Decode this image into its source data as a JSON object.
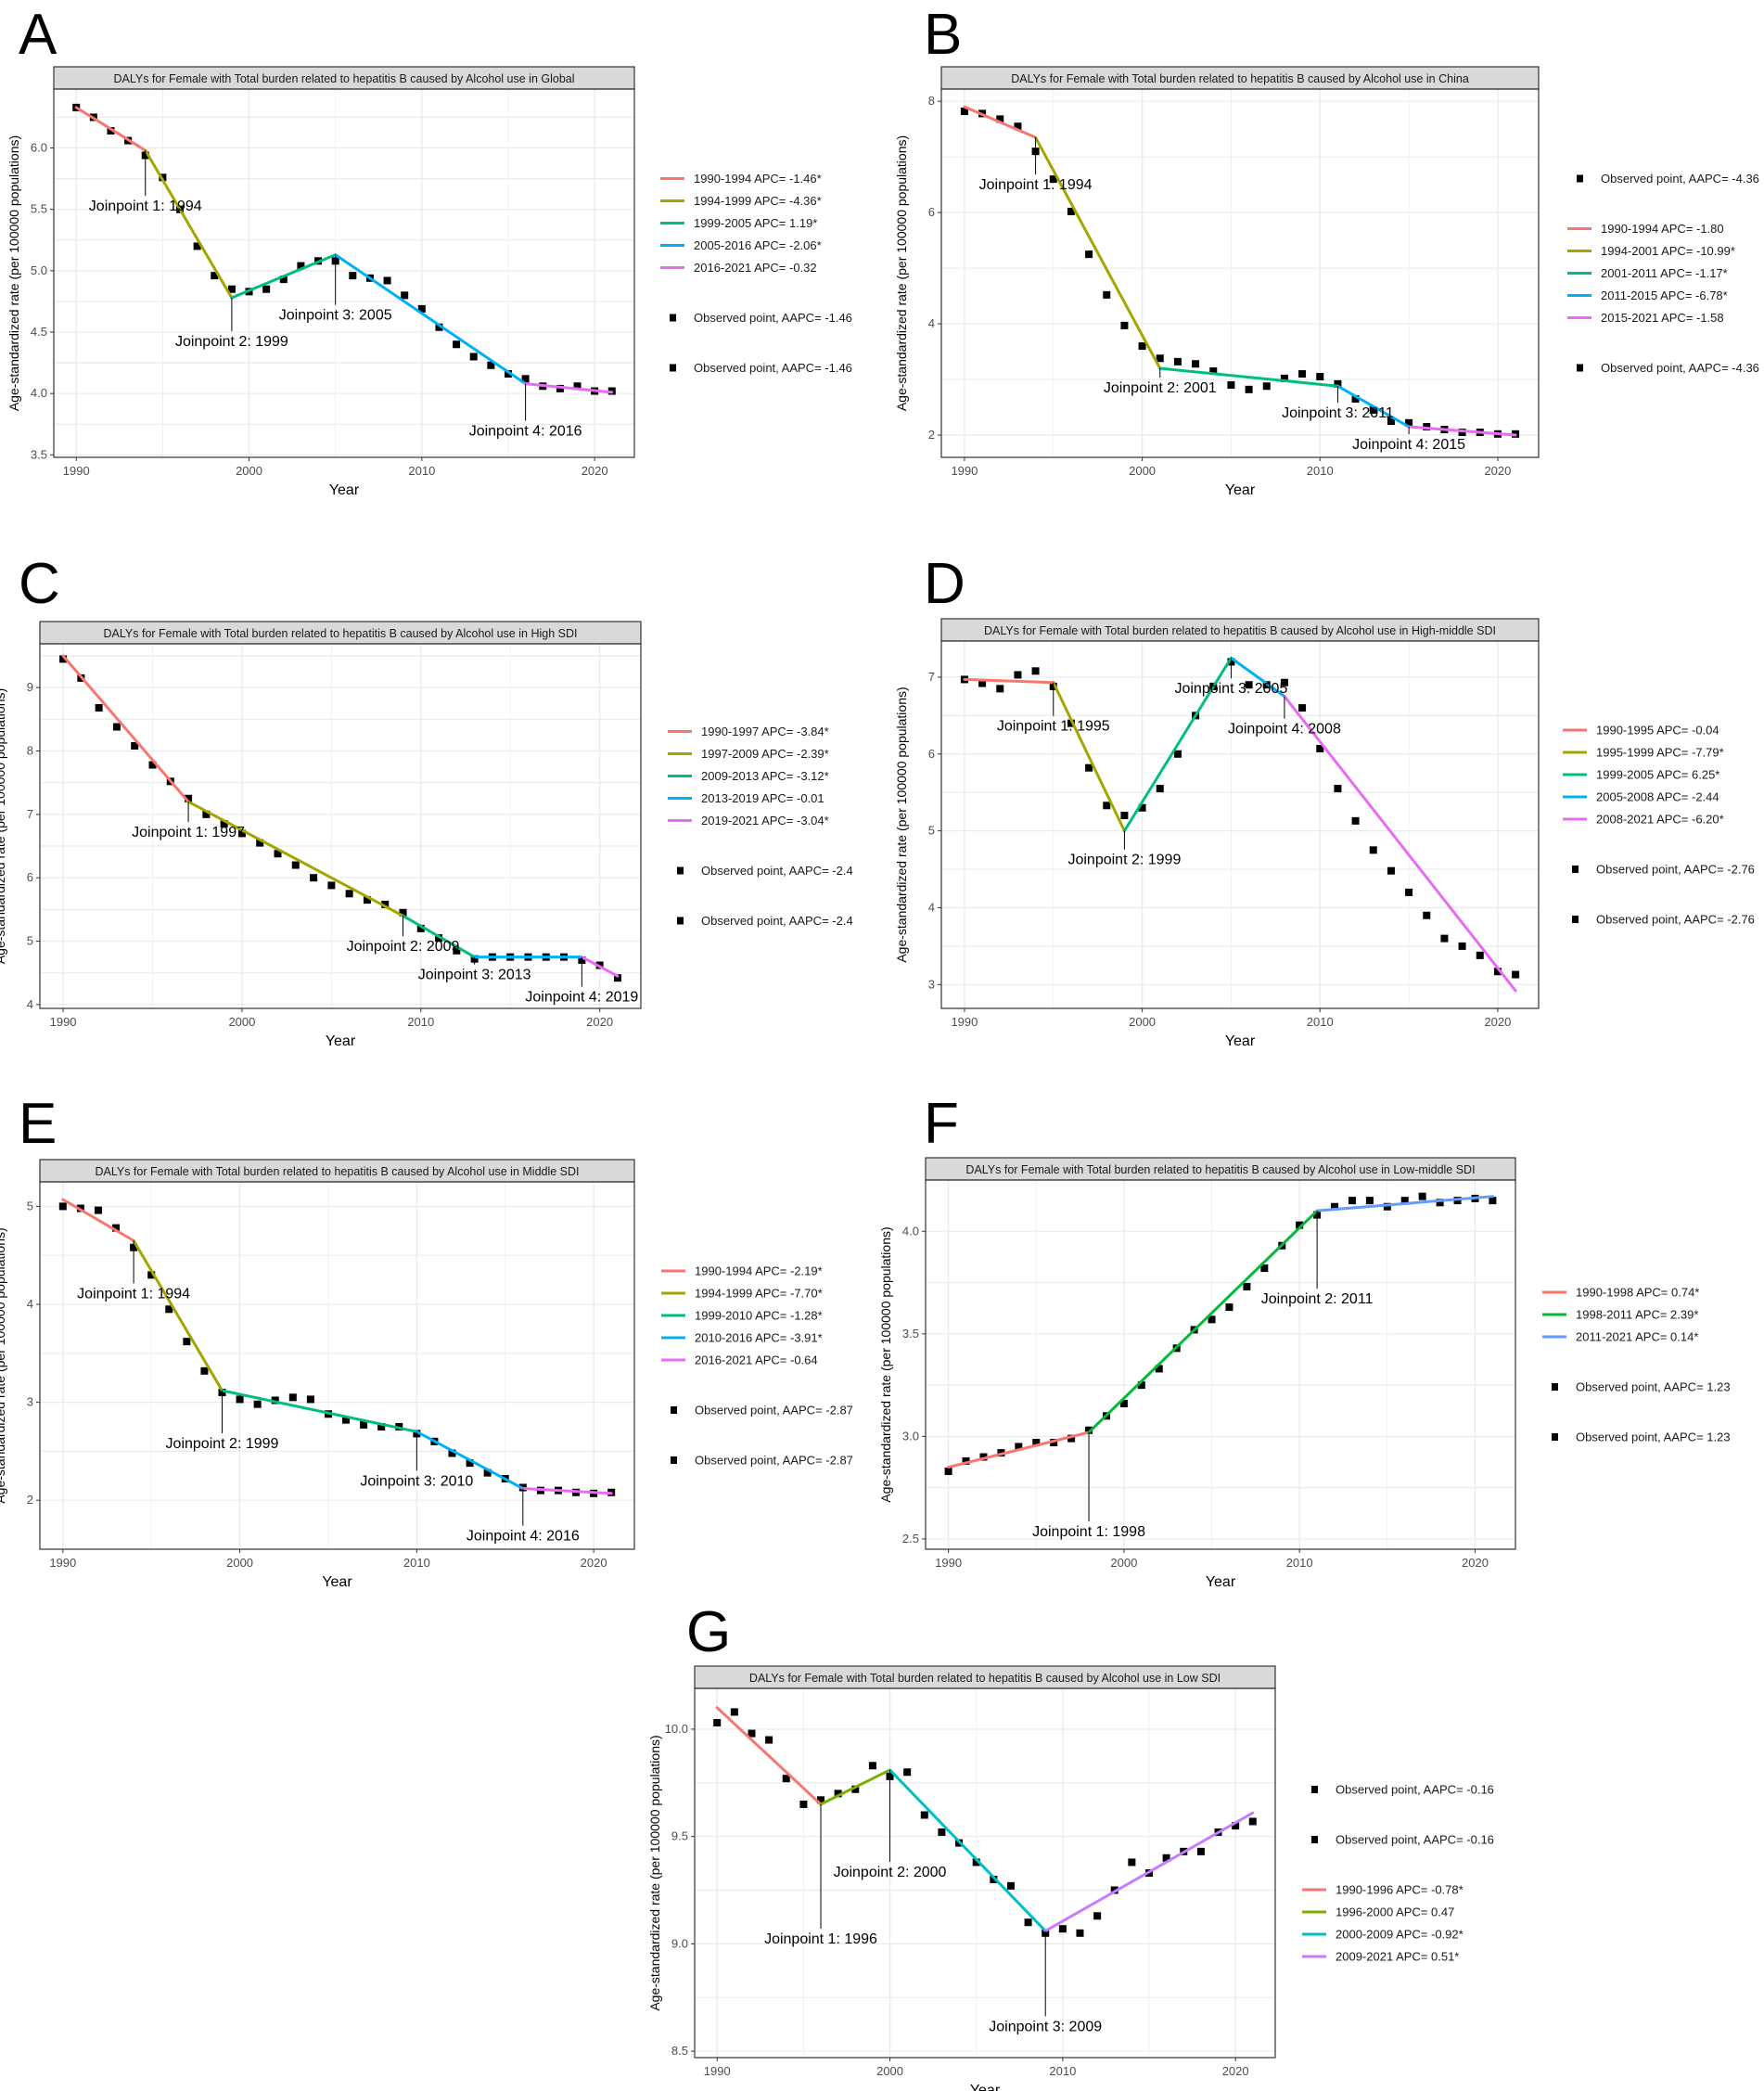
{
  "chart_data": [
    {
      "panel": "A",
      "type": "line",
      "title": "DALYs for Female with Total burden related to hepatitis B caused by Alcohol use in Global",
      "xlabel": "Year",
      "ylabel": "Age-standardized rate (per 100000 populations)",
      "xlim": [
        1988.7,
        2022.3
      ],
      "ylim": [
        3.48,
        6.48
      ],
      "xticks": [
        1990,
        2000,
        2010,
        2020
      ],
      "yticks": [
        "3.5",
        "4.0",
        "4.5",
        "5.0",
        "5.5",
        "6.0"
      ],
      "grid": true,
      "legend": "right",
      "observed": [
        6.33,
        6.25,
        6.14,
        6.06,
        5.94,
        5.76,
        5.5,
        5.2,
        4.96,
        4.85,
        4.83,
        4.85,
        4.93,
        5.04,
        5.08,
        5.08,
        4.96,
        4.94,
        4.92,
        4.8,
        4.69,
        4.54,
        4.4,
        4.3,
        4.23,
        4.16,
        4.12,
        4.06,
        4.04,
        4.06,
        4.02,
        4.02
      ],
      "fitted_knots": [
        [
          1990,
          6.33
        ],
        [
          1994,
          5.98
        ],
        [
          1999,
          4.78
        ],
        [
          2005,
          5.13
        ],
        [
          2016,
          4.08
        ],
        [
          2021,
          4.01
        ]
      ],
      "segment_colors": [
        "#F8766D",
        "#A3A500",
        "#00BF7D",
        "#00B0F6",
        "#E76BF3"
      ],
      "joinpoints": [
        {
          "year": 1994,
          "label": "Joinpoint 1: 1994"
        },
        {
          "year": 1999,
          "label": "Joinpoint 2: 1999"
        },
        {
          "year": 2005,
          "label": "Joinpoint 3: 2005"
        },
        {
          "year": 2016,
          "label": "Joinpoint 4: 2016"
        }
      ],
      "legend_items": [
        {
          "kind": "line",
          "seg": 0,
          "label": "1990-1994 APC= -1.46*"
        },
        {
          "kind": "line",
          "seg": 1,
          "label": "1994-1999 APC= -4.36*"
        },
        {
          "kind": "line",
          "seg": 2,
          "label": "1999-2005 APC= 1.19*"
        },
        {
          "kind": "line",
          "seg": 3,
          "label": "2005-2016 APC= -2.06*"
        },
        {
          "kind": "line",
          "seg": 4,
          "label": "2016-2021 APC= -0.32"
        },
        {
          "kind": "point",
          "label": "Observed point, AAPC= -1.46"
        },
        {
          "kind": "point",
          "label": "Observed point, AAPC= -1.46"
        }
      ]
    },
    {
      "panel": "B",
      "type": "line",
      "title": "DALYs for Female with Total burden related to hepatitis B caused by Alcohol use in China",
      "xlabel": "Year",
      "ylabel": "Age-standardized rate (per 100000 populations)",
      "xlim": [
        1988.7,
        2022.3
      ],
      "ylim": [
        1.6,
        8.22
      ],
      "xticks": [
        1990,
        2000,
        2010,
        2020
      ],
      "yticks": [
        "2",
        "4",
        "6",
        "8"
      ],
      "grid": true,
      "legend": "right",
      "observed": [
        7.82,
        7.78,
        7.68,
        7.55,
        7.1,
        6.6,
        6.02,
        5.25,
        4.52,
        3.97,
        3.6,
        3.38,
        3.32,
        3.28,
        3.15,
        2.9,
        2.82,
        2.88,
        3.02,
        3.1,
        3.05,
        2.92,
        2.65,
        2.45,
        2.25,
        2.22,
        2.15,
        2.1,
        2.05,
        2.05,
        2.02,
        2.02
      ],
      "fitted_knots": [
        [
          1990,
          7.9
        ],
        [
          1994,
          7.35
        ],
        [
          2001,
          3.2
        ],
        [
          2011,
          2.88
        ],
        [
          2015,
          2.15
        ],
        [
          2021,
          2.0
        ]
      ],
      "segment_colors": [
        "#F8766D",
        "#A3A500",
        "#00BF7D",
        "#00B0F6",
        "#E76BF3"
      ],
      "joinpoints": [
        {
          "year": 1994,
          "label": "Joinpoint 1: 1994"
        },
        {
          "year": 2001,
          "label": "Joinpoint 2: 2001"
        },
        {
          "year": 2011,
          "label": "Joinpoint 3: 2011"
        },
        {
          "year": 2015,
          "label": "Joinpoint 4: 2015"
        }
      ],
      "legend_items": [
        {
          "kind": "point",
          "label": "Observed point, AAPC= -4.36"
        },
        {
          "kind": "line",
          "seg": 0,
          "label": "1990-1994 APC= -1.80"
        },
        {
          "kind": "line",
          "seg": 1,
          "label": "1994-2001 APC= -10.99*"
        },
        {
          "kind": "line",
          "seg": 2,
          "label": "2001-2011 APC= -1.17*"
        },
        {
          "kind": "line",
          "seg": 3,
          "label": "2011-2015 APC= -6.78*"
        },
        {
          "kind": "line",
          "seg": 4,
          "label": "2015-2021 APC= -1.58"
        },
        {
          "kind": "point",
          "label": "Observed point, AAPC= -4.36"
        }
      ]
    },
    {
      "panel": "C",
      "type": "line",
      "title": "DALYs for Female with Total burden related to hepatitis B caused by Alcohol use in High SDI",
      "xlabel": "Year",
      "ylabel": "Age-standardized rate (per 100000 populations)",
      "xlim": [
        1988.7,
        2022.3
      ],
      "ylim": [
        3.94,
        9.69
      ],
      "xticks": [
        1990,
        2000,
        2010,
        2020
      ],
      "yticks": [
        "4",
        "5",
        "6",
        "7",
        "8",
        "9"
      ],
      "grid": true,
      "legend": "right",
      "observed": [
        9.45,
        9.15,
        8.68,
        8.38,
        8.08,
        7.78,
        7.52,
        7.25,
        7.0,
        6.85,
        6.7,
        6.55,
        6.38,
        6.2,
        6.0,
        5.88,
        5.75,
        5.65,
        5.58,
        5.45,
        5.2,
        5.05,
        4.85,
        4.72,
        4.75,
        4.75,
        4.75,
        4.75,
        4.75,
        4.7,
        4.62,
        4.42
      ],
      "fitted_knots": [
        [
          1990,
          9.5
        ],
        [
          1997,
          7.2
        ],
        [
          2009,
          5.4
        ],
        [
          2013,
          4.75
        ],
        [
          2019,
          4.75
        ],
        [
          2021,
          4.45
        ]
      ],
      "segment_colors": [
        "#F8766D",
        "#A3A500",
        "#00BF7D",
        "#00B0F6",
        "#E76BF3"
      ],
      "joinpoints": [
        {
          "year": 1997,
          "label": "Joinpoint 1: 1997"
        },
        {
          "year": 2009,
          "label": "Joinpoint 2: 2009"
        },
        {
          "year": 2013,
          "label": "Joinpoint 3: 2013"
        },
        {
          "year": 2019,
          "label": "Joinpoint 4: 2019"
        }
      ],
      "legend_items": [
        {
          "kind": "line",
          "seg": 0,
          "label": "1990-1997 APC= -3.84*"
        },
        {
          "kind": "line",
          "seg": 1,
          "label": "1997-2009 APC= -2.39*"
        },
        {
          "kind": "line",
          "seg": 2,
          "label": "2009-2013 APC= -3.12*"
        },
        {
          "kind": "line",
          "seg": 3,
          "label": "2013-2019 APC= -0.01"
        },
        {
          "kind": "line",
          "seg": 4,
          "label": "2019-2021 APC= -3.04*"
        },
        {
          "kind": "point",
          "label": "Observed point, AAPC= -2.4"
        },
        {
          "kind": "point",
          "label": "Observed point, AAPC= -2.4"
        }
      ]
    },
    {
      "panel": "D",
      "type": "line",
      "title": "DALYs for Female with Total burden related to hepatitis B caused by Alcohol use in High-middle SDI",
      "xlabel": "Year",
      "ylabel": "Age-standardized rate (per 100000 populations)",
      "xlim": [
        1988.7,
        2022.3
      ],
      "ylim": [
        2.69,
        7.47
      ],
      "xticks": [
        1990,
        2000,
        2010,
        2020
      ],
      "yticks": [
        "3",
        "4",
        "5",
        "6",
        "7"
      ],
      "grid": true,
      "legend": "right",
      "observed": [
        6.97,
        6.92,
        6.85,
        7.03,
        7.08,
        6.88,
        6.4,
        5.82,
        5.33,
        5.2,
        5.3,
        5.55,
        6.0,
        6.5,
        6.88,
        7.2,
        6.9,
        6.9,
        6.93,
        6.6,
        6.07,
        5.55,
        5.13,
        4.75,
        4.48,
        4.2,
        3.9,
        3.6,
        3.5,
        3.38,
        3.17,
        3.13
      ],
      "fitted_knots": [
        [
          1990,
          6.97
        ],
        [
          1995,
          6.93
        ],
        [
          1999,
          5.0
        ],
        [
          2005,
          7.25
        ],
        [
          2008,
          6.75
        ],
        [
          2021,
          2.92
        ]
      ],
      "segment_colors": [
        "#F8766D",
        "#A3A500",
        "#00BF7D",
        "#00B0F6",
        "#E76BF3"
      ],
      "joinpoints": [
        {
          "year": 1995,
          "label": "Joinpoint 1: 1995"
        },
        {
          "year": 1999,
          "label": "Joinpoint 2: 1999"
        },
        {
          "year": 2005,
          "label": "Joinpoint 3: 2005"
        },
        {
          "year": 2008,
          "label": "Joinpoint 4: 2008"
        }
      ],
      "legend_items": [
        {
          "kind": "line",
          "seg": 0,
          "label": "1990-1995 APC= -0.04"
        },
        {
          "kind": "line",
          "seg": 1,
          "label": "1995-1999 APC= -7.79*"
        },
        {
          "kind": "line",
          "seg": 2,
          "label": "1999-2005 APC= 6.25*"
        },
        {
          "kind": "line",
          "seg": 3,
          "label": "2005-2008 APC= -2.44"
        },
        {
          "kind": "line",
          "seg": 4,
          "label": "2008-2021 APC= -6.20*"
        },
        {
          "kind": "point",
          "label": "Observed point, AAPC= -2.76"
        },
        {
          "kind": "point",
          "label": "Observed point, AAPC= -2.76"
        }
      ]
    },
    {
      "panel": "E",
      "type": "line",
      "title": "DALYs for Female with Total burden related to hepatitis B caused by Alcohol use in Middle SDI",
      "xlabel": "Year",
      "ylabel": "Age-standardized rate (per 100000 populations)",
      "xlim": [
        1988.7,
        2022.3
      ],
      "ylim": [
        1.5,
        5.25
      ],
      "xticks": [
        1990,
        2000,
        2010,
        2020
      ],
      "yticks": [
        "2",
        "3",
        "4",
        "5"
      ],
      "grid": true,
      "legend": "right",
      "observed": [
        5.0,
        4.98,
        4.96,
        4.78,
        4.58,
        4.3,
        3.95,
        3.62,
        3.32,
        3.1,
        3.03,
        2.98,
        3.02,
        3.05,
        3.03,
        2.88,
        2.82,
        2.77,
        2.75,
        2.75,
        2.68,
        2.6,
        2.48,
        2.38,
        2.28,
        2.22,
        2.13,
        2.1,
        2.1,
        2.08,
        2.07,
        2.08
      ],
      "fitted_knots": [
        [
          1990,
          5.07
        ],
        [
          1994,
          4.65
        ],
        [
          1999,
          3.12
        ],
        [
          2010,
          2.7
        ],
        [
          2016,
          2.12
        ],
        [
          2021,
          2.07
        ]
      ],
      "segment_colors": [
        "#F8766D",
        "#A3A500",
        "#00BF7D",
        "#00B0F6",
        "#E76BF3"
      ],
      "joinpoints": [
        {
          "year": 1994,
          "label": "Joinpoint 1: 1994"
        },
        {
          "year": 1999,
          "label": "Joinpoint 2: 1999"
        },
        {
          "year": 2010,
          "label": "Joinpoint 3: 2010"
        },
        {
          "year": 2016,
          "label": "Joinpoint 4: 2016"
        }
      ],
      "legend_items": [
        {
          "kind": "line",
          "seg": 0,
          "label": "1990-1994 APC= -2.19*"
        },
        {
          "kind": "line",
          "seg": 1,
          "label": "1994-1999 APC= -7.70*"
        },
        {
          "kind": "line",
          "seg": 2,
          "label": "1999-2010 APC= -1.28*"
        },
        {
          "kind": "line",
          "seg": 3,
          "label": "2010-2016 APC= -3.91*"
        },
        {
          "kind": "line",
          "seg": 4,
          "label": "2016-2021 APC= -0.64"
        },
        {
          "kind": "point",
          "label": "Observed point, AAPC= -2.87"
        },
        {
          "kind": "point",
          "label": "Observed point, AAPC= -2.87"
        }
      ]
    },
    {
      "panel": "F",
      "type": "line",
      "title": "DALYs for Female with Total burden related to hepatitis B caused by Alcohol use in Low-middle SDI",
      "xlabel": "Year",
      "ylabel": "Age-standardized rate (per 100000 populations)",
      "xlim": [
        1988.7,
        2022.3
      ],
      "ylim": [
        2.45,
        4.25
      ],
      "xticks": [
        1990,
        2000,
        2010,
        2020
      ],
      "yticks": [
        "2.5",
        "3.0",
        "3.5",
        "4.0"
      ],
      "grid": true,
      "legend": "right",
      "observed": [
        2.83,
        2.88,
        2.9,
        2.92,
        2.95,
        2.97,
        2.97,
        2.99,
        3.03,
        3.1,
        3.16,
        3.25,
        3.33,
        3.43,
        3.52,
        3.57,
        3.63,
        3.73,
        3.82,
        3.93,
        4.03,
        4.08,
        4.12,
        4.15,
        4.15,
        4.12,
        4.15,
        4.17,
        4.14,
        4.15,
        4.16,
        4.15
      ],
      "fitted_knots": [
        [
          1990,
          2.85
        ],
        [
          1998,
          3.02
        ],
        [
          2011,
          4.1
        ],
        [
          2021,
          4.17
        ]
      ],
      "segment_colors": [
        "#F8766D",
        "#00BA38",
        "#619CFF"
      ],
      "joinpoints": [
        {
          "year": 1998,
          "label": "Joinpoint 1: 1998"
        },
        {
          "year": 2011,
          "label": "Joinpoint 2: 2011"
        }
      ],
      "legend_items": [
        {
          "kind": "line",
          "seg": 0,
          "label": "1990-1998 APC= 0.74*"
        },
        {
          "kind": "line",
          "seg": 1,
          "label": "1998-2011 APC= 2.39*"
        },
        {
          "kind": "line",
          "seg": 2,
          "label": "2011-2021 APC= 0.14*"
        },
        {
          "kind": "point",
          "label": "Observed point, AAPC= 1.23"
        },
        {
          "kind": "point",
          "label": "Observed point, AAPC= 1.23"
        }
      ]
    },
    {
      "panel": "G",
      "type": "line",
      "title": "DALYs for Female with Total burden related to hepatitis B caused by Alcohol use in Low SDI",
      "xlabel": "Year",
      "ylabel": "Age-standardized rate (per 100000 populations)",
      "xlim": [
        1988.7,
        2022.3
      ],
      "ylim": [
        8.47,
        10.19
      ],
      "xticks": [
        1990,
        2000,
        2010,
        2020
      ],
      "yticks": [
        "8.5",
        "9.0",
        "9.5",
        "10.0"
      ],
      "grid": true,
      "legend": "right",
      "observed": [
        10.03,
        10.08,
        9.98,
        9.95,
        9.77,
        9.65,
        9.67,
        9.7,
        9.72,
        9.83,
        9.78,
        9.8,
        9.6,
        9.52,
        9.47,
        9.38,
        9.3,
        9.27,
        9.1,
        9.05,
        9.07,
        9.05,
        9.13,
        9.25,
        9.38,
        9.33,
        9.4,
        9.43,
        9.43,
        9.52,
        9.55,
        9.57
      ],
      "fitted_knots": [
        [
          1990,
          10.1
        ],
        [
          1996,
          9.65
        ],
        [
          2000,
          9.81
        ],
        [
          2009,
          9.06
        ],
        [
          2021,
          9.61
        ]
      ],
      "segment_colors": [
        "#F8766D",
        "#7CAE00",
        "#00BFC4",
        "#C77CFF"
      ],
      "joinpoints": [
        {
          "year": 1996,
          "label": "Joinpoint 1: 1996"
        },
        {
          "year": 2000,
          "label": "Joinpoint 2: 2000"
        },
        {
          "year": 2009,
          "label": "Joinpoint 3: 2009"
        }
      ],
      "legend_items": [
        {
          "kind": "point",
          "label": "Observed point, AAPC= -0.16"
        },
        {
          "kind": "point",
          "label": "Observed point, AAPC= -0.16"
        },
        {
          "kind": "line",
          "seg": 0,
          "label": "1990-1996 APC= -0.78*"
        },
        {
          "kind": "line",
          "seg": 1,
          "label": "1996-2000 APC= 0.47"
        },
        {
          "kind": "line",
          "seg": 2,
          "label": "2000-2009 APC= -0.92*"
        },
        {
          "kind": "line",
          "seg": 3,
          "label": "2009-2021 APC= 0.51*"
        }
      ]
    }
  ]
}
